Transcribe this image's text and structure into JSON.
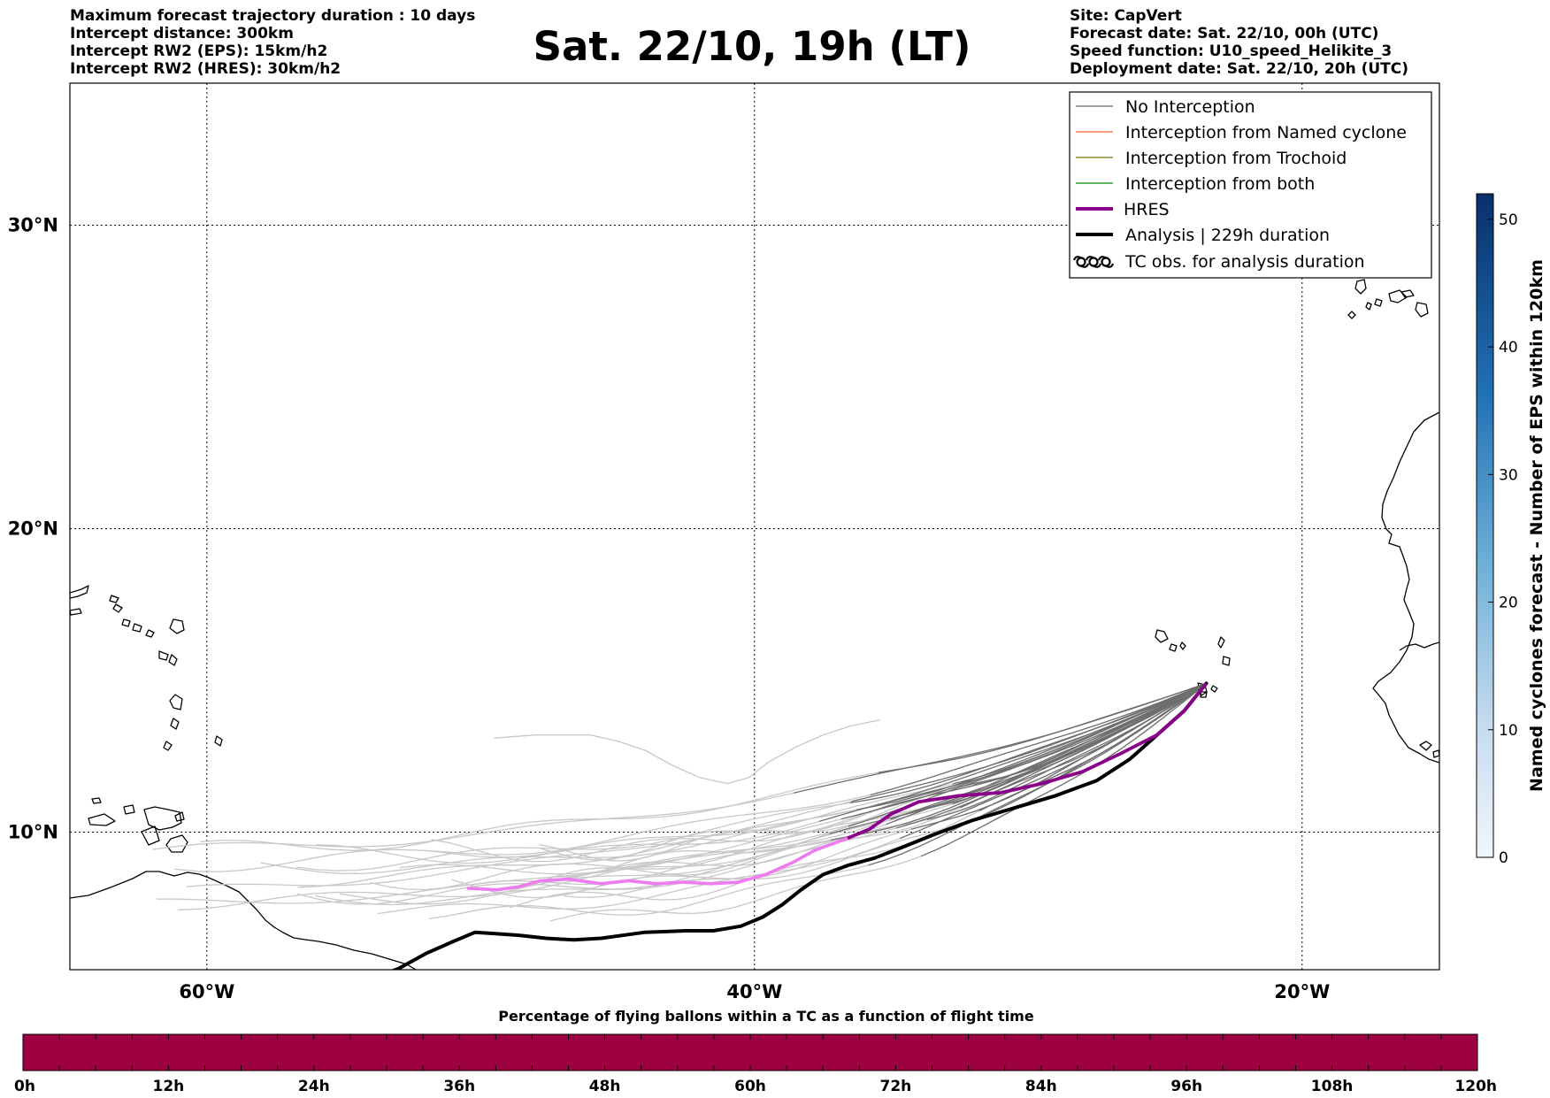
{
  "header": {
    "title": "Sat. 22/10, 19h (LT)",
    "left_lines": [
      "Maximum forecast trajectory duration : 10 days",
      "Intercept distance: 300km",
      "Intercept RW2 (EPS):  15km/h2",
      "Intercept RW2 (HRES): 30km/h2"
    ],
    "right_lines": [
      "Site: CapVert",
      "Forecast date: Sat. 22/10, 00h (UTC)",
      "Speed function: U10_speed_Helikite_3",
      "Deployment date: Sat. 22/10, 20h (UTC)"
    ]
  },
  "map": {
    "lon_range": [
      -65,
      -15
    ],
    "lat_range": [
      5.5,
      35
    ],
    "lon_ticks": [
      {
        "value": -60,
        "label": "60°W"
      },
      {
        "value": -40,
        "label": "40°W"
      },
      {
        "value": -20,
        "label": "20°W"
      }
    ],
    "lat_ticks": [
      {
        "value": 10,
        "label": "10°N"
      },
      {
        "value": 20,
        "label": "20°N"
      },
      {
        "value": 30,
        "label": "30°N"
      }
    ],
    "grid": "dotted",
    "launch_site": {
      "lon": -23.5,
      "lat": 14.9
    }
  },
  "legend": {
    "placement": "top-right",
    "items": [
      {
        "label": "No Interception",
        "style": "line",
        "color": "#808080",
        "width": 1.2
      },
      {
        "label": "Interception from Named cyclone",
        "style": "line",
        "color": "#ff7f50",
        "width": 1.2
      },
      {
        "label": "Interception from Trochoid",
        "style": "line",
        "color": "#8b8b2a",
        "width": 1.2
      },
      {
        "label": "Interception from both",
        "style": "line",
        "color": "#2ca02c",
        "width": 1.2
      },
      {
        "label": "HRES",
        "style": "line",
        "color": "#8b008b",
        "width": 4
      },
      {
        "label": "Analysis | 229h duration",
        "style": "line",
        "color": "#000000",
        "width": 4
      },
      {
        "label": "TC obs. for analysis duration",
        "style": "cyclone-icon",
        "color": "#000000"
      }
    ]
  },
  "trajectories": {
    "hres": [
      [
        -23.5,
        14.9
      ],
      [
        -24.3,
        14.0
      ],
      [
        -25.3,
        13.2
      ],
      [
        -26.6,
        12.6
      ],
      [
        -28,
        12.0
      ],
      [
        -29.5,
        11.6
      ],
      [
        -31,
        11.3
      ],
      [
        -32.5,
        11.2
      ],
      [
        -34,
        11.0
      ],
      [
        -35,
        10.6
      ],
      [
        -35.8,
        10.1
      ],
      [
        -36.6,
        9.8
      ],
      [
        -37.8,
        9.4
      ],
      [
        -38.6,
        9.0
      ],
      [
        -39.6,
        8.6
      ],
      [
        -40.6,
        8.35
      ],
      [
        -41.6,
        8.3
      ],
      [
        -42.6,
        8.35
      ],
      [
        -43.6,
        8.3
      ],
      [
        -44.6,
        8.4
      ],
      [
        -45.6,
        8.3
      ],
      [
        -46.8,
        8.45
      ],
      [
        -47.8,
        8.4
      ],
      [
        -48.6,
        8.2
      ],
      [
        -49.4,
        8.1
      ],
      [
        -50.5,
        8.15
      ]
    ],
    "hres_light_from_lon": -36.6,
    "analysis": [
      [
        -23.5,
        14.9
      ],
      [
        -24.3,
        14.0
      ],
      [
        -25.3,
        13.2
      ],
      [
        -26.3,
        12.4
      ],
      [
        -27.5,
        11.7
      ],
      [
        -29,
        11.2
      ],
      [
        -30.5,
        10.8
      ],
      [
        -32,
        10.4
      ],
      [
        -33.5,
        9.9
      ],
      [
        -34.6,
        9.5
      ],
      [
        -35.6,
        9.15
      ],
      [
        -36.6,
        8.9
      ],
      [
        -37.5,
        8.6
      ],
      [
        -38.3,
        8.1
      ],
      [
        -39,
        7.6
      ],
      [
        -39.7,
        7.2
      ],
      [
        -40.5,
        6.9
      ],
      [
        -41.5,
        6.75
      ],
      [
        -42.5,
        6.75
      ],
      [
        -44,
        6.7
      ],
      [
        -45.6,
        6.5
      ],
      [
        -46.6,
        6.45
      ],
      [
        -47.6,
        6.5
      ],
      [
        -48.6,
        6.6
      ],
      [
        -49.4,
        6.65
      ],
      [
        -50.2,
        6.7
      ],
      [
        -51,
        6.4
      ],
      [
        -52,
        6.0
      ],
      [
        -53,
        5.5
      ],
      [
        -54.5,
        5.0
      ]
    ]
  },
  "colorbar_right": {
    "label": "Named cyclones forecast - Number of EPS within 120km",
    "range": [
      0,
      52
    ],
    "ticks": [
      0,
      10,
      20,
      30,
      40,
      50
    ],
    "color_low": "#f0f6fc",
    "color_high": "#08306b"
  },
  "colorbar_bottom": {
    "title": "Percentage of flying ballons within a TC as a function of flight time",
    "color": "#9e0142",
    "ticks": [
      "0h",
      "12h",
      "24h",
      "36h",
      "48h",
      "60h",
      "72h",
      "84h",
      "96h",
      "108h",
      "120h"
    ]
  }
}
